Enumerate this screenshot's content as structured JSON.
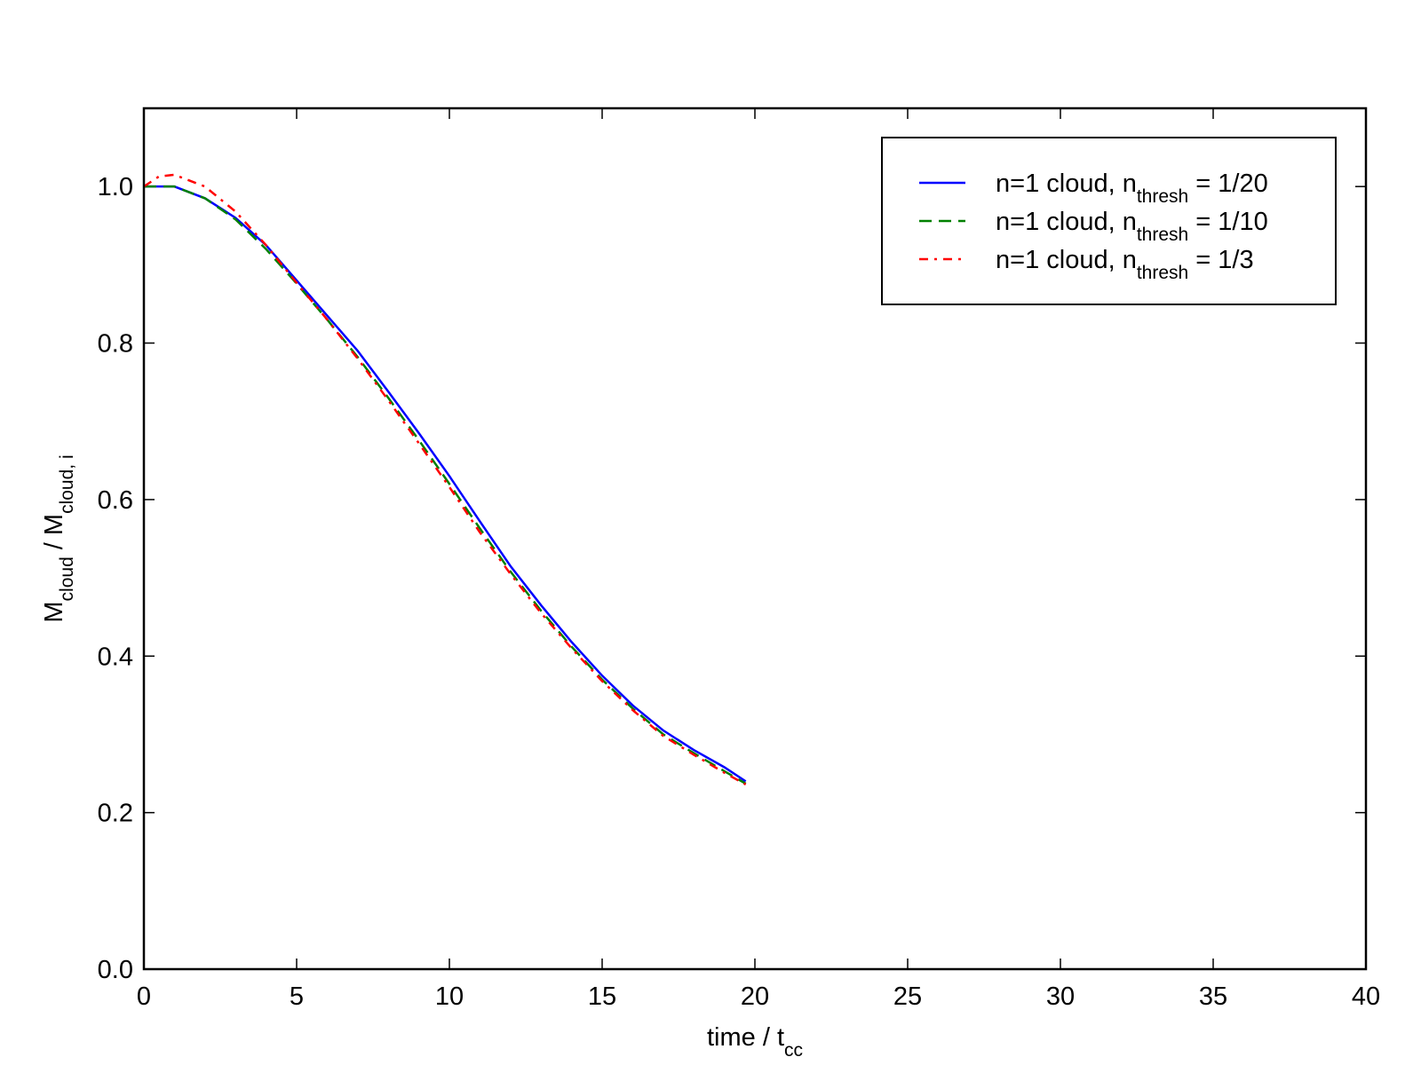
{
  "chart_data": {
    "type": "line",
    "xlabel": [
      {
        "text": "time / t"
      },
      {
        "text": "cc",
        "sub": true
      }
    ],
    "ylabel": [
      {
        "text": "M"
      },
      {
        "text": "cloud",
        "sub": true
      },
      {
        "text": " / M"
      },
      {
        "text": "cloud, i",
        "sub": true
      }
    ],
    "xlim": [
      0,
      40
    ],
    "ylim": [
      0,
      1.1
    ],
    "xticks": [
      0,
      5,
      10,
      15,
      20,
      25,
      30,
      35,
      40
    ],
    "yticks": [
      {
        "value": 0,
        "label": "0.0"
      },
      {
        "value": 0.2,
        "label": "0.2"
      },
      {
        "value": 0.4,
        "label": "0.4"
      },
      {
        "value": 0.6,
        "label": "0.6"
      },
      {
        "value": 0.8,
        "label": "0.8"
      },
      {
        "value": 1.0,
        "label": "1.0"
      }
    ],
    "grid": false,
    "legend": "upper right",
    "series": [
      {
        "name": [
          {
            "text": "n=1 cloud, n"
          },
          {
            "text": "thresh",
            "sub": true
          },
          {
            "text": " = 1/20"
          }
        ],
        "color": "#0000ff",
        "style": "solid",
        "x": [
          0,
          1,
          2,
          3,
          4,
          5,
          6,
          7,
          8,
          9,
          10,
          11,
          12,
          13,
          14,
          15,
          16,
          17,
          18,
          19,
          19.7
        ],
        "values": [
          1.0,
          1.0,
          0.985,
          0.96,
          0.925,
          0.88,
          0.835,
          0.79,
          0.738,
          0.685,
          0.63,
          0.572,
          0.515,
          0.465,
          0.418,
          0.375,
          0.337,
          0.305,
          0.28,
          0.258,
          0.24
        ]
      },
      {
        "name": [
          {
            "text": "n=1 cloud, n"
          },
          {
            "text": "thresh",
            "sub": true
          },
          {
            "text": " = 1/10"
          }
        ],
        "color": "#008000",
        "style": "dashed",
        "x": [
          0,
          1,
          2,
          3,
          4,
          5,
          6,
          7,
          8,
          9,
          10,
          11,
          12,
          13,
          14,
          15,
          16,
          17,
          18,
          19,
          19.7
        ],
        "values": [
          1.0,
          1.0,
          0.985,
          0.958,
          0.92,
          0.876,
          0.83,
          0.782,
          0.73,
          0.676,
          0.62,
          0.563,
          0.508,
          0.458,
          0.412,
          0.37,
          0.333,
          0.3,
          0.276,
          0.253,
          0.237
        ]
      },
      {
        "name": [
          {
            "text": "n=1 cloud, n"
          },
          {
            "text": "thresh",
            "sub": true
          },
          {
            "text": " = 1/3"
          }
        ],
        "color": "#ff0000",
        "style": "dashdot",
        "x": [
          0,
          0.5,
          1,
          2,
          3,
          4,
          5,
          6,
          7,
          8,
          9,
          10,
          11,
          12,
          13,
          14,
          15,
          16,
          17,
          18,
          19,
          19.7
        ],
        "values": [
          1.0,
          1.013,
          1.015,
          1.0,
          0.968,
          0.925,
          0.877,
          0.83,
          0.78,
          0.727,
          0.672,
          0.616,
          0.558,
          0.505,
          0.455,
          0.41,
          0.368,
          0.331,
          0.298,
          0.274,
          0.251,
          0.236
        ]
      }
    ]
  }
}
